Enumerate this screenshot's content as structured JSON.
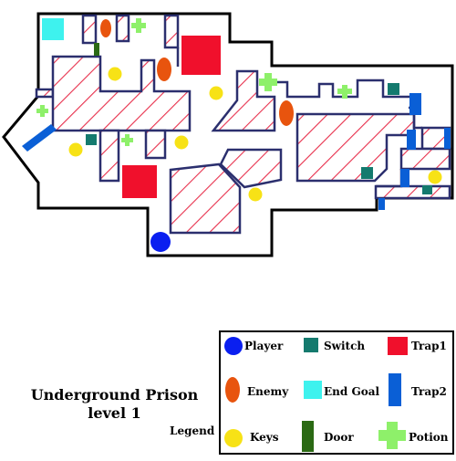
{
  "title": {
    "line1": "Underground Prison",
    "line2": "level 1"
  },
  "legend": {
    "heading": "Legend",
    "items": [
      {
        "label": "Player",
        "color": "#0a1ff0",
        "icon": "player-circle"
      },
      {
        "label": "Switch",
        "color": "#147a6e",
        "icon": "switch-square"
      },
      {
        "label": "Trap1",
        "color": "#f0102c",
        "icon": "trap1-square"
      },
      {
        "label": "Enemy",
        "color": "#e8540e",
        "icon": "enemy-oval"
      },
      {
        "label": "End Goal",
        "color": "#3ef2ee",
        "icon": "end-goal-square"
      },
      {
        "label": "Trap2",
        "color": "#0a5fd6",
        "icon": "trap2-bar"
      },
      {
        "label": "Keys",
        "color": "#f7e216",
        "icon": "key-circle"
      },
      {
        "label": "Door",
        "color": "#2b6a14",
        "icon": "door-bar"
      },
      {
        "label": "Potion",
        "color": "#8ef06a",
        "icon": "potion-cross"
      }
    ]
  },
  "map": {
    "wall_color": "#000000",
    "obstacle_outline": "#2b2f6e",
    "obstacle_hatch": "#e8304c",
    "counts": {
      "players": 1,
      "enemies": 4,
      "keys": 8,
      "switches": 5,
      "doors": 1,
      "potions": 5,
      "trap1": 2,
      "trap2": 6,
      "end_goals": 1
    }
  }
}
